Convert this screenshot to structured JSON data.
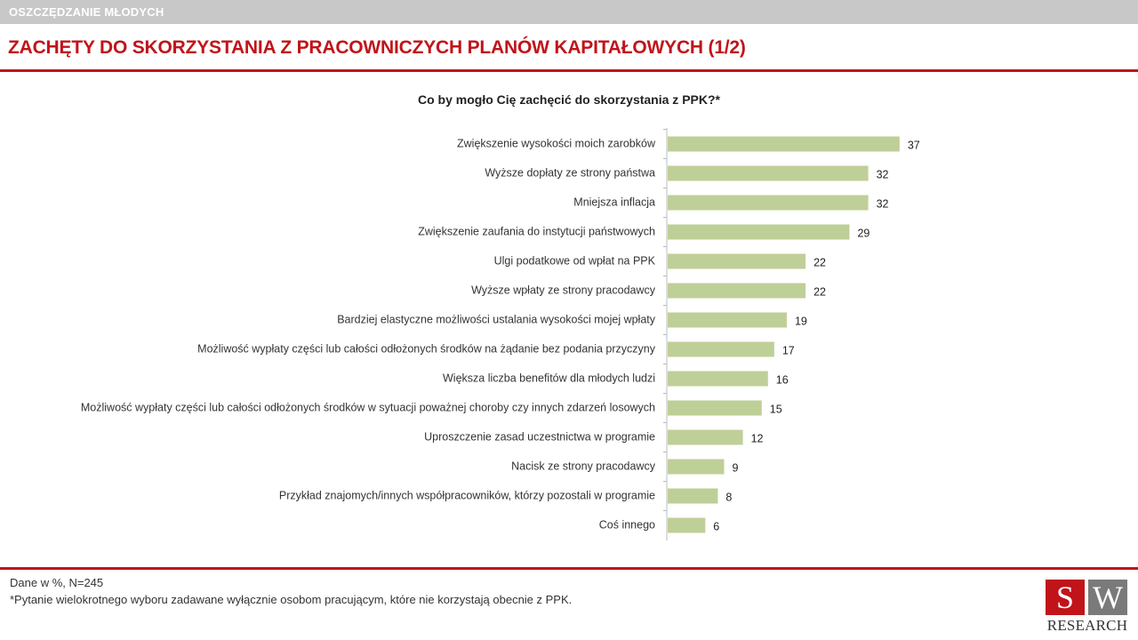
{
  "header": {
    "section": "OSZCZĘDZANIE MŁODYCH",
    "title": "ZACHĘTY DO SKORZYSTANIA Z PRACOWNICZYCH PLANÓW KAPITAŁOWYCH (1/2)"
  },
  "question": "Co by mogło Cię zachęcić do skorzystania z PPK?*",
  "chart_data": {
    "type": "bar",
    "orientation": "horizontal",
    "categories": [
      "Zwiększenie wysokości moich zarobków",
      "Wyższe dopłaty ze strony państwa",
      "Mniejsza inflacja",
      "Zwiększenie zaufania do instytucji państwowych",
      "Ulgi podatkowe od wpłat na PPK",
      "Wyższe wpłaty ze strony pracodawcy",
      "Bardziej elastyczne możliwości ustalania wysokości mojej wpłaty",
      "Możliwość wypłaty części lub całości odłożonych środków na żądanie bez podania przyczyny",
      "Większa liczba benefitów dla młodych ludzi",
      "Możliwość wypłaty części lub całości odłożonych środków w sytuacji poważnej choroby czy innych zdarzeń losowych",
      "Uproszczenie zasad uczestnictwa w programie",
      "Nacisk ze strony pracodawcy",
      "Przykład znajomych/innych współpracowników, którzy pozostali w programie",
      "Coś innego"
    ],
    "values": [
      37,
      32,
      32,
      29,
      22,
      22,
      19,
      17,
      16,
      15,
      12,
      9,
      8,
      6
    ],
    "bar_color": "#bfcf98",
    "grid": false,
    "legend": "none"
  },
  "footer": {
    "note1": "Dane w %, N=245",
    "note2": "*Pytanie wielokrotnego wyboru zadawane wyłącznie osobom pracującym, które nie korzystają obecnie z PPK."
  },
  "logo": {
    "letter1": "S",
    "letter2": "W",
    "text": "RESEARCH",
    "color_primary": "#c0141a",
    "color_secondary": "#7a7a7a"
  }
}
